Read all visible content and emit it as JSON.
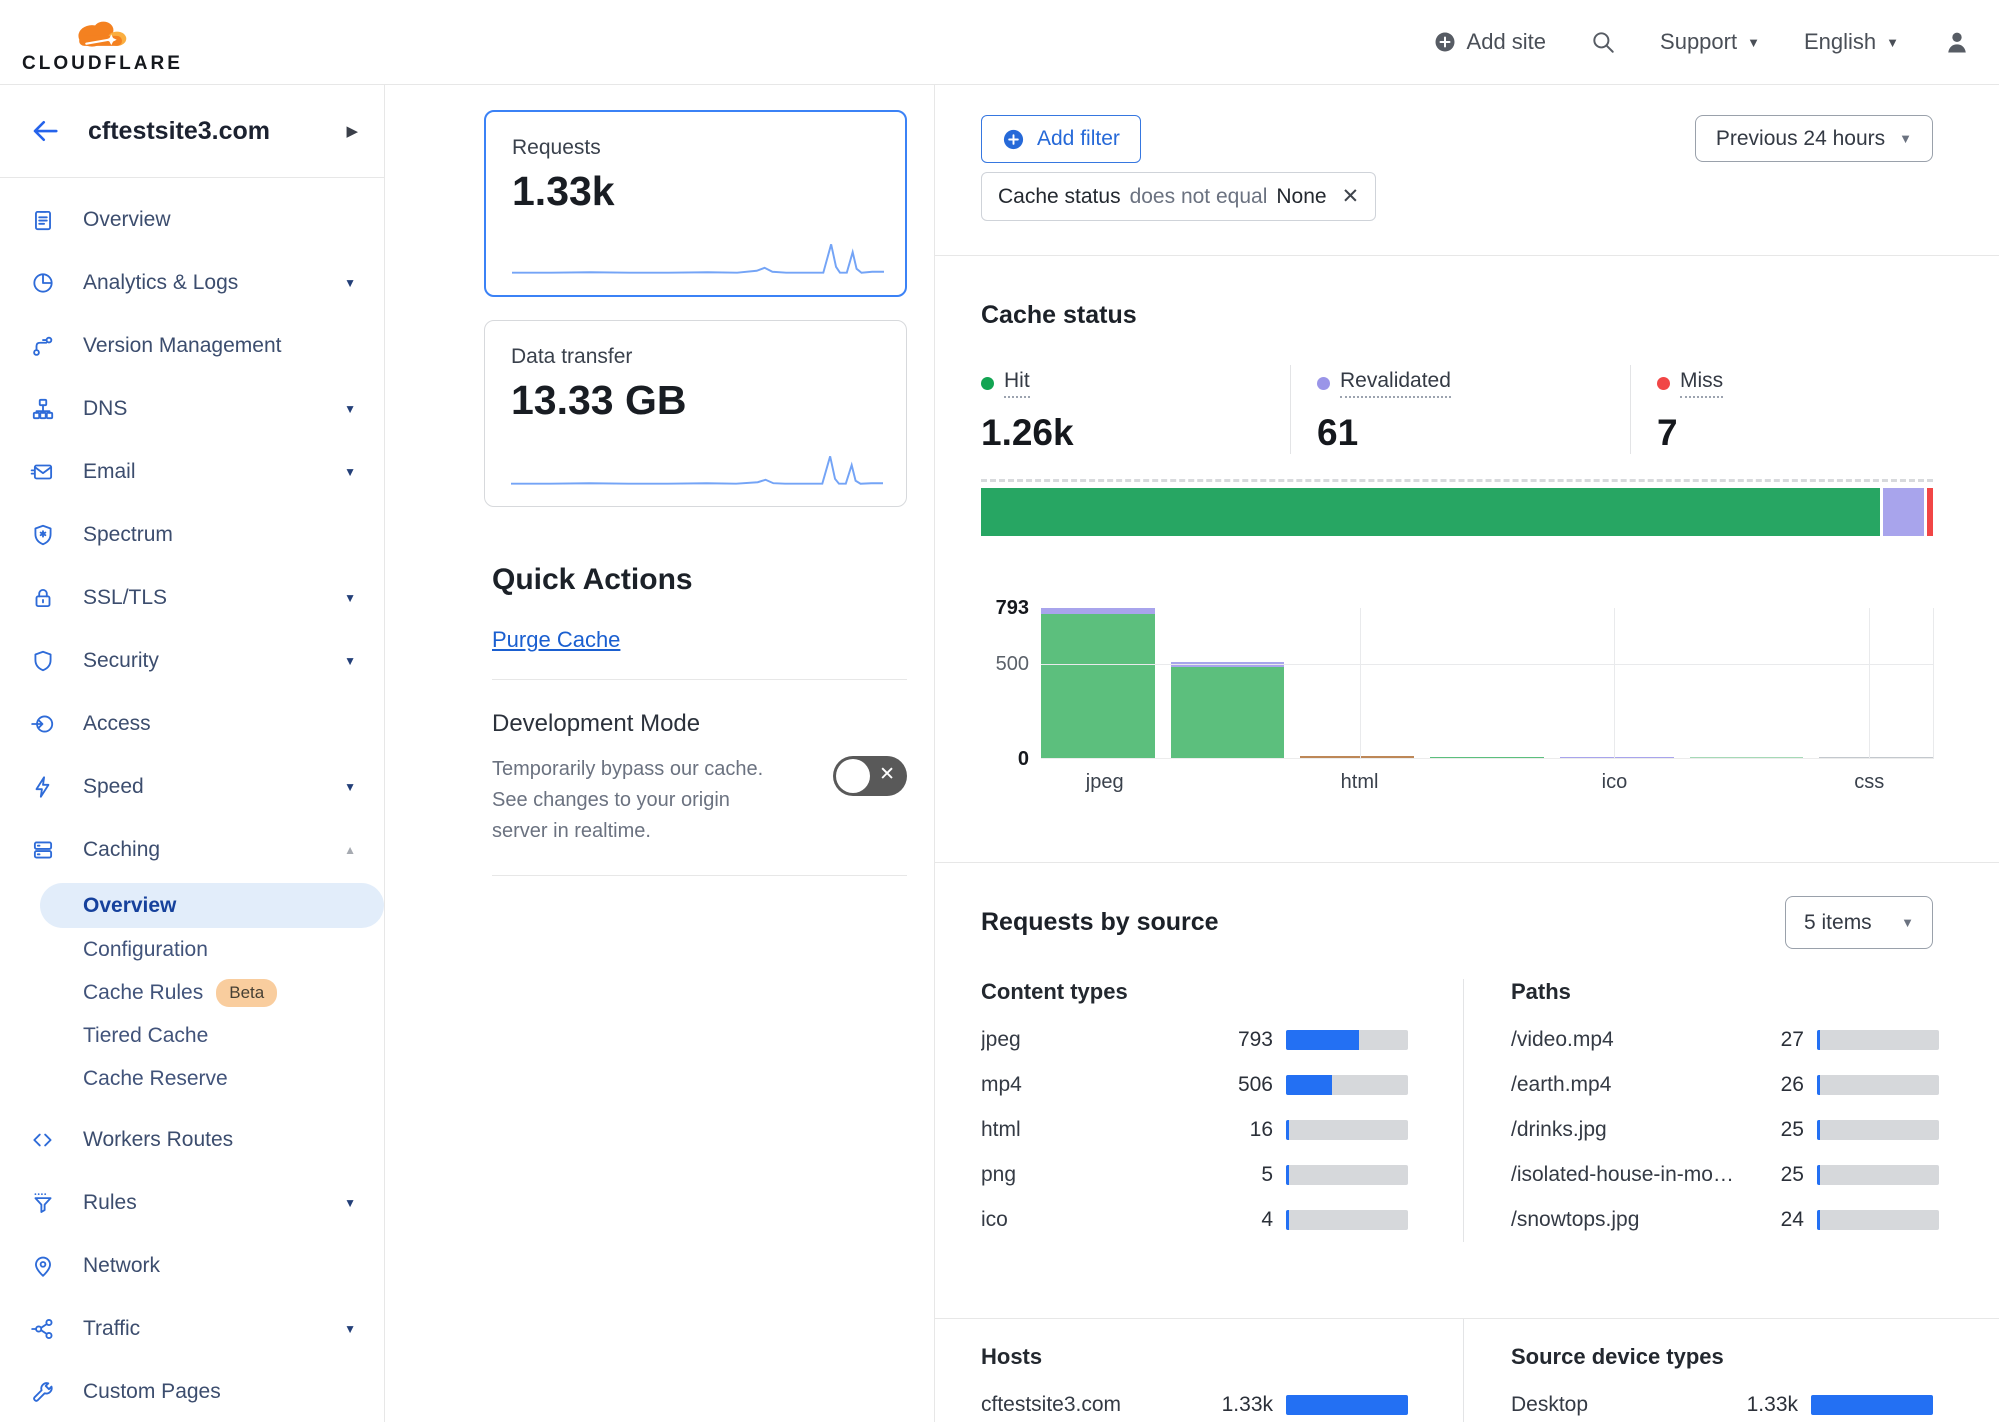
{
  "header": {
    "logo_text": "CLOUDFLARE",
    "logo_icon": "cloudflare-cloud-icon",
    "add_site_label": "Add site",
    "add_site_icon": "plus-circle-icon",
    "search_icon": "search-icon",
    "support_label": "Support",
    "language_label": "English",
    "user_icon": "user-icon"
  },
  "sidebar": {
    "site_name": "cftestsite3.com",
    "back_icon": "back-arrow-icon",
    "expand_icon": "chevron-right-icon",
    "items": [
      {
        "label": "Overview",
        "icon": "clipboard-icon"
      },
      {
        "label": "Analytics & Logs",
        "icon": "pie-chart-icon",
        "caret": "down"
      },
      {
        "label": "Version Management",
        "icon": "branch-icon"
      },
      {
        "label": "DNS",
        "icon": "sitemap-icon",
        "caret": "down"
      },
      {
        "label": "Email",
        "icon": "envelope-icon",
        "caret": "down"
      },
      {
        "label": "Spectrum",
        "icon": "shield-star-icon"
      },
      {
        "label": "SSL/TLS",
        "icon": "lock-icon",
        "caret": "down"
      },
      {
        "label": "Security",
        "icon": "shield-icon",
        "caret": "down"
      },
      {
        "label": "Access",
        "icon": "access-icon"
      },
      {
        "label": "Speed",
        "icon": "lightning-icon",
        "caret": "down"
      },
      {
        "label": "Caching",
        "icon": "server-stack-icon",
        "caret": "up",
        "expanded": true,
        "children": [
          {
            "label": "Overview",
            "active": true
          },
          {
            "label": "Configuration"
          },
          {
            "label": "Cache Rules",
            "badge": "Beta"
          },
          {
            "label": "Tiered Cache"
          },
          {
            "label": "Cache Reserve"
          }
        ]
      },
      {
        "label": "Workers Routes",
        "icon": "code-icon"
      },
      {
        "label": "Rules",
        "icon": "funnel-icon",
        "caret": "down"
      },
      {
        "label": "Network",
        "icon": "map-pin-icon"
      },
      {
        "label": "Traffic",
        "icon": "share-nodes-icon",
        "caret": "down"
      },
      {
        "label": "Custom Pages",
        "icon": "wrench-icon"
      }
    ]
  },
  "metric_cards": {
    "requests": {
      "label": "Requests",
      "value": "1.33k",
      "selected": true
    },
    "data_transfer": {
      "label": "Data transfer",
      "value": "13.33 GB",
      "selected": false
    }
  },
  "quick_actions": {
    "title": "Quick Actions",
    "purge_cache_label": "Purge Cache",
    "development_mode": {
      "title": "Development Mode",
      "description": "Temporarily bypass our cache. See changes to your origin server in realtime.",
      "toggle_state": "off"
    }
  },
  "filter_bar": {
    "add_filter_label": "Add filter",
    "add_filter_icon": "plus-circle-icon",
    "chip": {
      "field": "Cache status",
      "operator": "does not equal",
      "value": "None",
      "close_icon": "close-icon"
    },
    "time_range": "Previous 24 hours"
  },
  "cache_status": {
    "title": "Cache status",
    "stats": [
      {
        "label": "Hit",
        "value": "1.26k",
        "color": "#12a452"
      },
      {
        "label": "Revalidated",
        "value": "61",
        "color": "#9a95e8"
      },
      {
        "label": "Miss",
        "value": "7",
        "color": "#f14646"
      }
    ],
    "summary_bar": [
      {
        "name": "Hit",
        "pct": 94.7,
        "color": "#27a663"
      },
      {
        "name": "Revalidated",
        "pct": 4.4,
        "color": "#a8a4ec"
      },
      {
        "name": "Miss",
        "pct": 0.6,
        "color": "#f14646"
      }
    ]
  },
  "chart_data": {
    "type": "bar",
    "stacked": true,
    "ylim": [
      0,
      793
    ],
    "yticks": [
      {
        "value": 793,
        "bold": true
      },
      {
        "value": 500,
        "bold": false
      },
      {
        "value": 0,
        "bold": true
      }
    ],
    "grid": true,
    "legend_position": "none",
    "bars": [
      {
        "label": "jpeg",
        "segments": [
          {
            "name": "hit",
            "value": 763,
            "color": "#5cbf7d"
          },
          {
            "name": "revalidated",
            "value": 30,
            "color": "#a8a4ec"
          }
        ]
      },
      {
        "label": "",
        "segments": [
          {
            "name": "hit",
            "value": 481,
            "color": "#5cbf7d"
          },
          {
            "name": "revalidated",
            "value": 25,
            "color": "#a8a4ec"
          }
        ]
      },
      {
        "label": "html",
        "segments": [
          {
            "name": "miss",
            "value": 16,
            "color": "#bd8757"
          }
        ]
      },
      {
        "label": "",
        "segments": [
          {
            "name": "hit",
            "value": 5,
            "color": "#5cbf7d"
          }
        ]
      },
      {
        "label": "ico",
        "segments": [
          {
            "name": "revalidated",
            "value": 4,
            "color": "#a8a4ec"
          }
        ]
      },
      {
        "label": "",
        "segments": [
          {
            "name": "hit",
            "value": 2,
            "color": "#a5d9b6"
          }
        ]
      },
      {
        "label": "css",
        "segments": [
          {
            "name": "hit",
            "value": 1,
            "color": "#c3c8cd"
          }
        ]
      }
    ]
  },
  "requests_by_source": {
    "title": "Requests by source",
    "items_selector": "5 items",
    "bar_color": "#2370f3",
    "scale_max": 1330,
    "sections": [
      {
        "heading": "Content types",
        "rows": [
          {
            "label": "jpeg",
            "display": "793",
            "value": 793
          },
          {
            "label": "mp4",
            "display": "506",
            "value": 506
          },
          {
            "label": "html",
            "display": "16",
            "value": 16
          },
          {
            "label": "png",
            "display": "5",
            "value": 5
          },
          {
            "label": "ico",
            "display": "4",
            "value": 4
          }
        ]
      },
      {
        "heading": "Paths",
        "rows": [
          {
            "label": "/video.mp4",
            "display": "27",
            "value": 27
          },
          {
            "label": "/earth.mp4",
            "display": "26",
            "value": 26
          },
          {
            "label": "/drinks.jpg",
            "display": "25",
            "value": 25
          },
          {
            "label": "/isolated-house-in-mo…",
            "display": "25",
            "value": 25
          },
          {
            "label": "/snowtops.jpg",
            "display": "24",
            "value": 24
          }
        ]
      },
      {
        "heading": "Hosts",
        "rows": [
          {
            "label": "cftestsite3.com",
            "display": "1.33k",
            "value": 1330
          }
        ]
      },
      {
        "heading": "Source device types",
        "rows": [
          {
            "label": "Desktop",
            "display": "1.33k",
            "value": 1330
          }
        ]
      }
    ]
  }
}
